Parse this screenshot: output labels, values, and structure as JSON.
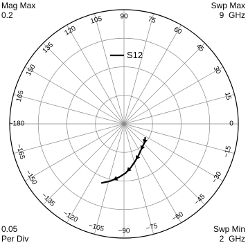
{
  "corners": {
    "top_left": "Mag Max\n0.2",
    "top_right": "Swp Max\n9  GHz",
    "bottom_left": "0.05\nPer Div",
    "bottom_right": "Swp Min\n2  GHz"
  },
  "chart_data": {
    "type": "polar",
    "magnitude_max": 0.2,
    "magnitude_per_div": 0.05,
    "sweep_min": "2  GHz",
    "sweep_max": "9  GHz",
    "angle_ticks": [
      0,
      15,
      30,
      45,
      60,
      75,
      90,
      105,
      120,
      135,
      150,
      165,
      -180,
      -165,
      -150,
      -135,
      -120,
      -105,
      -90,
      -75,
      -60,
      -45,
      -30,
      -15
    ],
    "angle_labels": [
      "0",
      "15",
      "30",
      "45",
      "60",
      "75",
      "90",
      "105",
      "120",
      "135",
      "150",
      "165",
      "−180",
      "−165",
      "−150",
      "−135",
      "−120",
      "−105",
      "−90",
      "−75",
      "−60",
      "−45",
      "−30",
      "−15"
    ],
    "legend": "S12",
    "series": [
      {
        "name": "S12",
        "points": [
          {
            "mag": 0.0438,
            "ang": -32
          },
          {
            "mag": 0.0465,
            "ang": -38
          },
          {
            "mag": 0.0487,
            "ang": -43
          },
          {
            "mag": 0.051,
            "ang": -50
          },
          {
            "mag": 0.0545,
            "ang": -57
          },
          {
            "mag": 0.0605,
            "ang": -65
          },
          {
            "mag": 0.0678,
            "ang": -73
          },
          {
            "mag": 0.0772,
            "ang": -81
          },
          {
            "mag": 0.086,
            "ang": -88
          },
          {
            "mag": 0.0935,
            "ang": -95
          },
          {
            "mag": 0.1025,
            "ang": -103
          },
          {
            "mag": 0.111,
            "ang": -111
          }
        ],
        "arrow_indices": [
          2,
          4,
          6,
          8,
          10
        ]
      }
    ]
  }
}
